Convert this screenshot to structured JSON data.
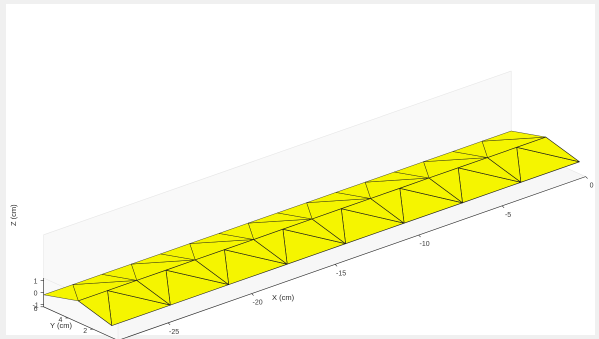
{
  "chart_data": {
    "type": "surface",
    "xlabel": "X (cm)",
    "ylabel": "Y (cm)",
    "zlabel": "Z (cm)",
    "x_ticks": [
      "0",
      "-5",
      "-10",
      "-15",
      "-20",
      "-25"
    ],
    "y_ticks": [
      "0",
      "2",
      "4",
      "6"
    ],
    "z_ticks": [
      "1",
      "0",
      "-1"
    ],
    "xlim": [
      -28,
      0
    ],
    "ylim": [
      0,
      6
    ],
    "zlim": [
      -1.2,
      1.2
    ],
    "grid": false,
    "colors": {
      "face": "#f5f500",
      "edge": "#1a1a1a",
      "floor": "#f7f7f7"
    },
    "surface": {
      "description_of_data": "triangulated truss-like sheet",
      "x": [
        0,
        -3.5,
        -7,
        -10.5,
        -14,
        -17.5,
        -21,
        -24.5,
        -28
      ],
      "front_y": 0.5,
      "back_y": 6,
      "ridge_y": 3.2,
      "front_z": -0.2,
      "ridge_z": 0.6,
      "back_z": -0.2
    }
  }
}
